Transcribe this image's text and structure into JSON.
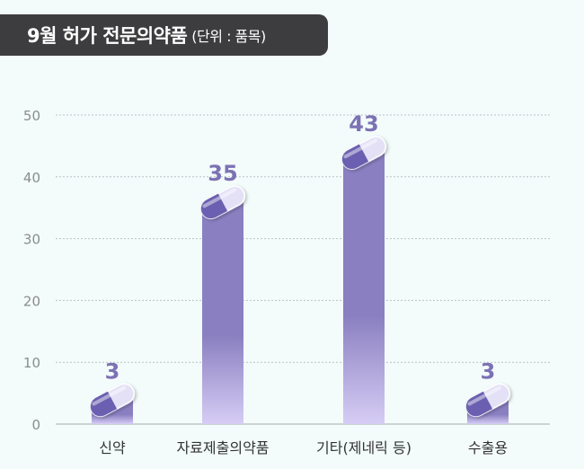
{
  "title": {
    "main": "9월 허가 전문의약품",
    "unit": "(단위 : 품목)"
  },
  "chart_data": {
    "type": "bar",
    "categories": [
      "신약",
      "자료제출의약품",
      "기타(제네릭 등)",
      "수출용"
    ],
    "values": [
      3,
      35,
      43,
      3
    ],
    "ylim": [
      0,
      50
    ],
    "yticks": [
      0,
      10,
      20,
      30,
      40,
      50
    ],
    "grid": true,
    "bar_color_top": "#8a7fc0",
    "bar_color_bottom": "#d6cdf5",
    "label_color": "#7c72b4",
    "capsule_dark": "#6b5fb0",
    "capsule_light": "#e4e1f6"
  }
}
